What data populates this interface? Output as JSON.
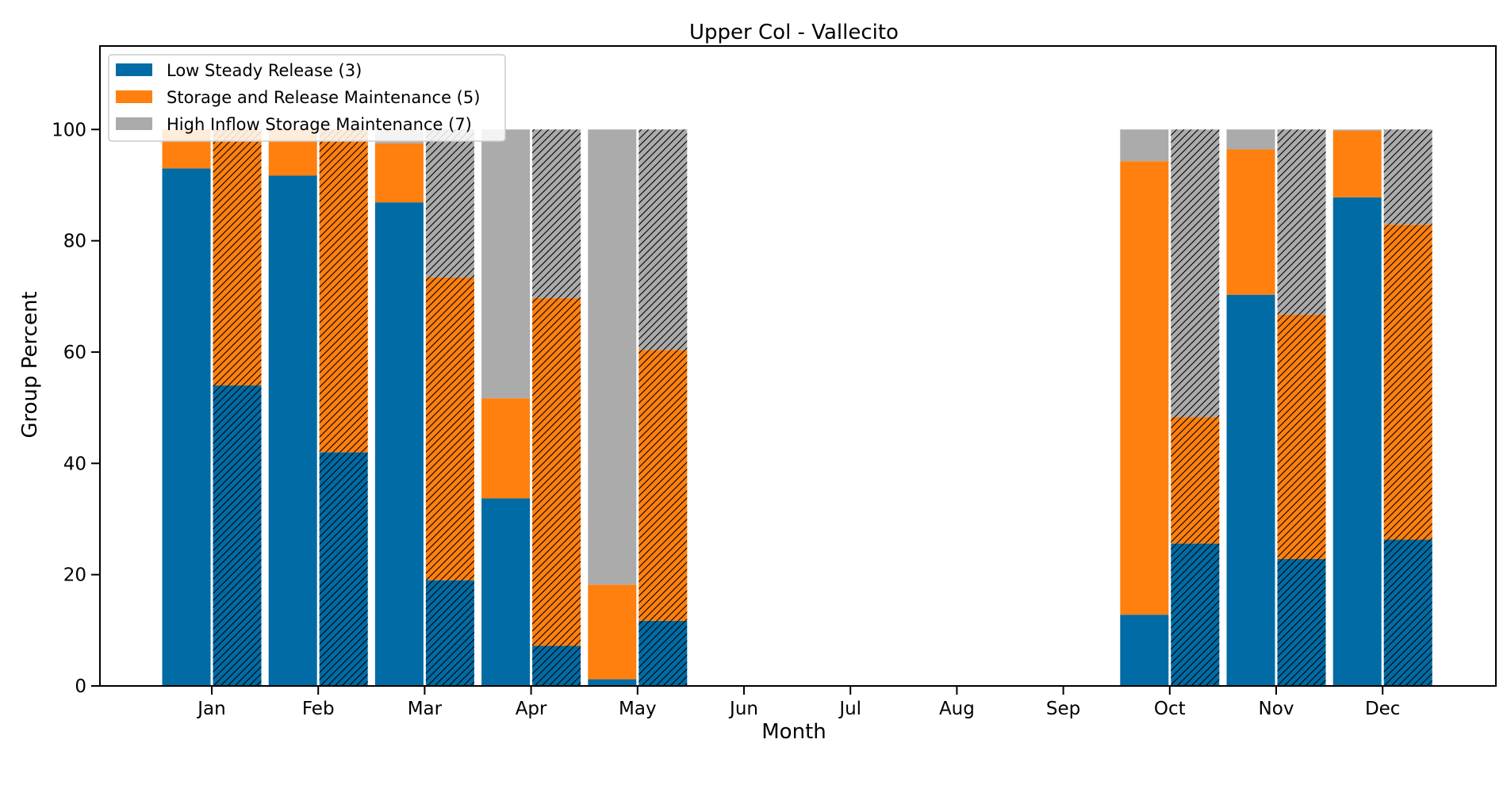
{
  "chart_data": {
    "type": "bar",
    "title": "Upper Col - Vallecito",
    "xlabel": "Month",
    "ylabel": "Group Percent",
    "ylim": [
      0,
      115
    ],
    "yticks": [
      0,
      20,
      40,
      60,
      80,
      100
    ],
    "grid": false,
    "legend_position": "top-left",
    "categories": [
      "Jan",
      "Feb",
      "Mar",
      "Apr",
      "May",
      "Jun",
      "Jul",
      "Aug",
      "Sep",
      "Oct",
      "Nov",
      "Dec"
    ],
    "stack_order": [
      "Low Steady Release (3)",
      "Storage and Release Maintenance (5)",
      "High Inflow Storage Maintenance (7)"
    ],
    "colors": {
      "Low Steady Release (3)": "#006ba4",
      "Storage and Release Maintenance (5)": "#ff800e",
      "High Inflow Storage Maintenance (7)": "#ababab"
    },
    "bar_groups": [
      {
        "hatched": false,
        "series": [
          {
            "name": "Low Steady Release (3)",
            "values": [
              93.0,
              91.7,
              86.9,
              33.7,
              1.2,
              null,
              null,
              null,
              null,
              12.8,
              70.3,
              87.8
            ]
          },
          {
            "name": "Storage and Release Maintenance (5)",
            "values": [
              7.0,
              8.3,
              10.6,
              18.0,
              17.0,
              null,
              null,
              null,
              null,
              81.5,
              26.1,
              12.0
            ]
          },
          {
            "name": "High Inflow Storage Maintenance (7)",
            "values": [
              0.0,
              0.0,
              2.5,
              48.3,
              81.8,
              null,
              null,
              null,
              null,
              5.7,
              3.6,
              0.2
            ]
          }
        ]
      },
      {
        "hatched": true,
        "series": [
          {
            "name": "Low Steady Release (3)",
            "values": [
              54.0,
              42.0,
              19.0,
              7.2,
              11.7,
              null,
              null,
              null,
              null,
              25.6,
              22.8,
              26.3
            ]
          },
          {
            "name": "Storage and Release Maintenance (5)",
            "values": [
              46.0,
              58.0,
              54.4,
              62.5,
              48.7,
              null,
              null,
              null,
              null,
              22.7,
              43.9,
              56.6
            ]
          },
          {
            "name": "High Inflow Storage Maintenance (7)",
            "values": [
              0.0,
              0.0,
              26.6,
              30.3,
              39.6,
              null,
              null,
              null,
              null,
              51.7,
              33.3,
              17.1
            ]
          }
        ]
      }
    ]
  }
}
